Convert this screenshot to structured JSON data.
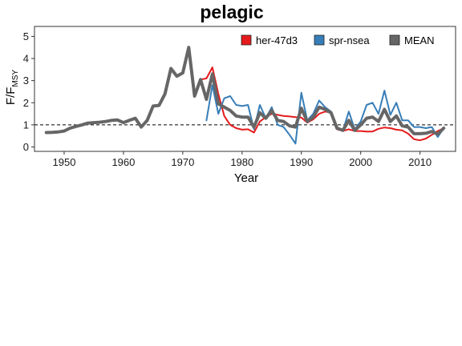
{
  "chart_data": {
    "type": "line",
    "title": "pelagic",
    "xlabel": "Year",
    "ylabel": {
      "main": "F/F",
      "sub": "MSY"
    },
    "xlim": [
      1945,
      2016
    ],
    "ylim": [
      -0.2,
      5.45
    ],
    "xticks": [
      1950,
      1960,
      1970,
      1980,
      1990,
      2000,
      2010
    ],
    "yticks": [
      0,
      1,
      2,
      3,
      4,
      5
    ],
    "reference_line": {
      "y": 1,
      "style": "dashed"
    },
    "legend_position": "top-right",
    "grid": false,
    "series": [
      {
        "name": "her-47d3",
        "color": "#e41a1c",
        "x": [
          1947,
          1948,
          1949,
          1950,
          1951,
          1952,
          1953,
          1954,
          1955,
          1956,
          1957,
          1958,
          1959,
          1960,
          1961,
          1962,
          1963,
          1964,
          1965,
          1966,
          1967,
          1968,
          1969,
          1970,
          1971,
          1972,
          1973,
          1974,
          1975,
          1976,
          1977,
          1978,
          1979,
          1980,
          1981,
          1982,
          1983,
          1984,
          1985,
          1986,
          1987,
          1988,
          1989,
          1990,
          1991,
          1992,
          1993,
          1994,
          1995,
          1996,
          1997,
          1998,
          1999,
          2000,
          2001,
          2002,
          2003,
          2004,
          2005,
          2006,
          2007,
          2008,
          2009,
          2010,
          2011,
          2012,
          2013,
          2014
        ],
        "values": [
          0.65,
          0.66,
          0.68,
          0.72,
          0.85,
          0.93,
          1.0,
          1.08,
          1.1,
          1.12,
          1.15,
          1.2,
          1.22,
          1.1,
          1.2,
          1.3,
          0.9,
          1.2,
          1.85,
          1.88,
          2.4,
          3.55,
          3.2,
          3.35,
          4.5,
          2.3,
          3.05,
          3.1,
          3.6,
          2.4,
          1.4,
          1.0,
          0.85,
          0.78,
          0.8,
          0.65,
          1.15,
          1.35,
          1.5,
          1.45,
          1.4,
          1.38,
          1.35,
          1.33,
          1.1,
          1.25,
          1.5,
          1.6,
          1.55,
          0.8,
          0.72,
          0.8,
          0.72,
          0.72,
          0.7,
          0.7,
          0.82,
          0.88,
          0.85,
          0.78,
          0.75,
          0.6,
          0.35,
          0.3,
          0.38,
          0.55,
          0.72,
          0.85
        ]
      },
      {
        "name": "spr-nsea",
        "color": "#377eb8",
        "x": [
          1974,
          1975,
          1976,
          1977,
          1978,
          1979,
          1980,
          1981,
          1982,
          1983,
          1984,
          1985,
          1986,
          1987,
          1988,
          1989,
          1990,
          1991,
          1992,
          1993,
          1994,
          1995,
          1996,
          1997,
          1998,
          1999,
          2000,
          2001,
          2002,
          2003,
          2004,
          2005,
          2006,
          2007,
          2008,
          2009,
          2010,
          2011,
          2012,
          2013,
          2014
        ],
        "values": [
          1.2,
          2.8,
          1.5,
          2.2,
          2.3,
          1.9,
          1.85,
          1.9,
          0.8,
          1.9,
          1.3,
          1.8,
          1.0,
          0.9,
          0.55,
          0.15,
          2.45,
          1.2,
          1.5,
          2.1,
          1.8,
          1.6,
          0.9,
          0.75,
          1.6,
          0.8,
          1.15,
          1.9,
          2.0,
          1.5,
          2.55,
          1.45,
          2.0,
          1.2,
          1.2,
          0.9,
          0.9,
          0.85,
          0.9,
          0.45,
          0.85
        ]
      },
      {
        "name": "MEAN",
        "color": "#666666",
        "x": [
          1947,
          1948,
          1949,
          1950,
          1951,
          1952,
          1953,
          1954,
          1955,
          1956,
          1957,
          1958,
          1959,
          1960,
          1961,
          1962,
          1963,
          1964,
          1965,
          1966,
          1967,
          1968,
          1969,
          1970,
          1971,
          1972,
          1973,
          1974,
          1975,
          1976,
          1977,
          1978,
          1979,
          1980,
          1981,
          1982,
          1983,
          1984,
          1985,
          1986,
          1987,
          1988,
          1989,
          1990,
          1991,
          1992,
          1993,
          1994,
          1995,
          1996,
          1997,
          1998,
          1999,
          2000,
          2001,
          2002,
          2003,
          2004,
          2005,
          2006,
          2007,
          2008,
          2009,
          2010,
          2011,
          2012,
          2013,
          2014
        ],
        "values": [
          0.65,
          0.66,
          0.68,
          0.72,
          0.85,
          0.93,
          1.0,
          1.08,
          1.1,
          1.12,
          1.15,
          1.2,
          1.22,
          1.1,
          1.2,
          1.3,
          0.9,
          1.2,
          1.85,
          1.88,
          2.4,
          3.55,
          3.2,
          3.35,
          4.5,
          2.3,
          3.05,
          2.15,
          3.3,
          1.95,
          1.8,
          1.65,
          1.4,
          1.35,
          1.35,
          0.9,
          1.55,
          1.3,
          1.65,
          1.2,
          1.15,
          0.95,
          0.9,
          1.75,
          1.15,
          1.35,
          1.8,
          1.7,
          1.55,
          0.85,
          0.75,
          1.2,
          0.75,
          1.0,
          1.3,
          1.35,
          1.15,
          1.7,
          1.15,
          1.4,
          0.95,
          0.9,
          0.6,
          0.6,
          0.62,
          0.7,
          0.58,
          0.85
        ]
      }
    ]
  }
}
